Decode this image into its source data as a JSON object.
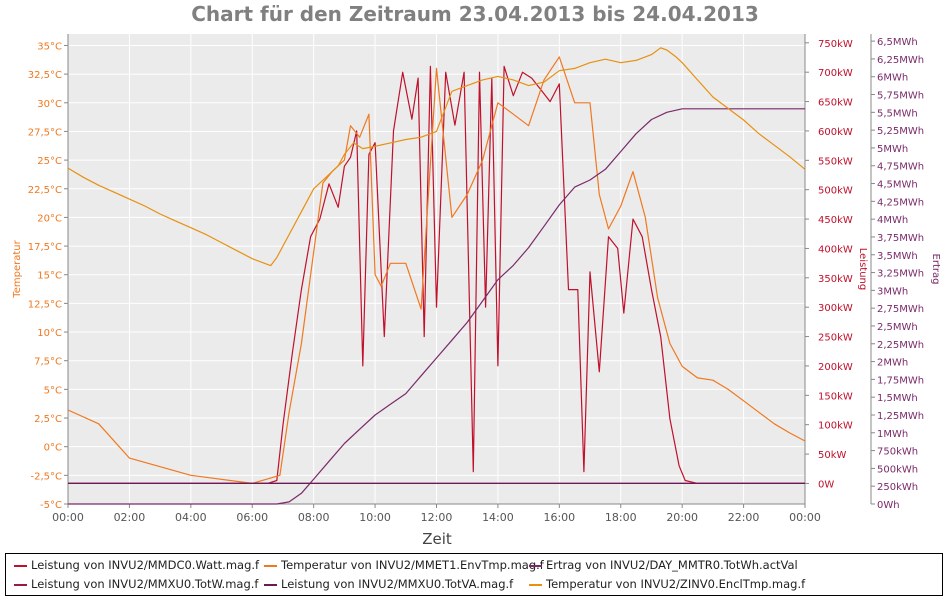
{
  "title": "Chart für den Zeitraum 23.04.2013 bis 24.04.2013",
  "colors": {
    "temp": "#f07820",
    "power": "#c0102c",
    "energy": "#7a2a6a",
    "plot_bg": "#ebebeb",
    "grid": "#ffffff"
  },
  "chart_data": {
    "type": "line",
    "title": "Chart für den Zeitraum 23.04.2013 bis 24.04.2013",
    "xlabel": "Zeit",
    "x_ticks": [
      "00:00",
      "02:00",
      "04:00",
      "06:00",
      "08:00",
      "10:00",
      "12:00",
      "14:00",
      "16:00",
      "18:00",
      "20:00",
      "22:00",
      "00:00"
    ],
    "xlim": [
      0,
      24
    ],
    "grid": true,
    "legend_position": "bottom",
    "axes": {
      "temperature": {
        "label": "Temperatur",
        "ylim": [
          -5,
          36
        ],
        "ticks": [
          "-5°C",
          "-2,5°C",
          "0°C",
          "2,5°C",
          "5°C",
          "7,5°C",
          "10°C",
          "12,5°C",
          "15°C",
          "17,5°C",
          "20°C",
          "22,5°C",
          "25°C",
          "27,5°C",
          "30°C",
          "32,5°C",
          "35°C"
        ]
      },
      "power": {
        "label": "Leistung",
        "ylim": [
          -35,
          765
        ],
        "ticks": [
          "0W",
          "50kW",
          "100kW",
          "150kW",
          "200kW",
          "250kW",
          "300kW",
          "350kW",
          "400kW",
          "450kW",
          "500kW",
          "550kW",
          "600kW",
          "650kW",
          "700kW",
          "750kW"
        ]
      },
      "energy": {
        "label": "Ertrag",
        "ylim": [
          0,
          6.6
        ],
        "ticks": [
          "0Wh",
          "250kWh",
          "500kWh",
          "750kWh",
          "1MWh",
          "1,25MWh",
          "1,5MWh",
          "1,75MWh",
          "2MWh",
          "2,25MWh",
          "2,5MWh",
          "2,75MWh",
          "3MWh",
          "3,25MWh",
          "3,5MWh",
          "3,75MWh",
          "4MWh",
          "4,25MWh",
          "4,5MWh",
          "4,75MWh",
          "5MWh",
          "5,25MWh",
          "5,5MWh",
          "5,75MWh",
          "6MWh",
          "6,25MWh",
          "6,5MWh"
        ]
      }
    },
    "series": [
      {
        "name": "Leistung von INVU2/MMDC0.Watt.mag.f",
        "axis": "power",
        "color": "#c0102c",
        "x": [
          0,
          6.5,
          6.8,
          7.0,
          7.3,
          7.6,
          7.9,
          8.2,
          8.5,
          8.8,
          9.0,
          9.2,
          9.4,
          9.6,
          9.8,
          10.0,
          10.3,
          10.6,
          10.9,
          11.2,
          11.4,
          11.6,
          11.8,
          12.0,
          12.3,
          12.6,
          12.9,
          13.2,
          13.4,
          13.6,
          13.8,
          14.0,
          14.2,
          14.5,
          14.8,
          15.1,
          15.4,
          15.7,
          16.0,
          16.3,
          16.6,
          16.8,
          17.0,
          17.3,
          17.6,
          17.9,
          18.1,
          18.4,
          18.7,
          19.0,
          19.3,
          19.6,
          19.9,
          20.1,
          20.5,
          24
        ],
        "y": [
          0,
          0,
          5,
          100,
          220,
          330,
          420,
          450,
          510,
          470,
          540,
          555,
          600,
          200,
          560,
          580,
          250,
          600,
          700,
          620,
          690,
          250,
          710,
          300,
          700,
          610,
          700,
          20,
          700,
          300,
          690,
          200,
          710,
          660,
          700,
          690,
          670,
          650,
          680,
          330,
          330,
          20,
          360,
          190,
          420,
          400,
          290,
          450,
          420,
          330,
          250,
          110,
          30,
          5,
          0,
          0
        ]
      },
      {
        "name": "Temperatur von INVU2/MMET1.EnvTmp.mag.f",
        "axis": "temperature",
        "color": "#f07820",
        "x": [
          0,
          1,
          2,
          4,
          6,
          6.9,
          7.2,
          7.6,
          8.0,
          8.3,
          8.6,
          9.0,
          9.2,
          9.5,
          9.8,
          10.0,
          10.2,
          10.5,
          11.0,
          11.5,
          12.0,
          12.5,
          13.0,
          13.5,
          14.0,
          14.5,
          15.0,
          15.5,
          16.0,
          16.5,
          17.0,
          17.3,
          17.6,
          18.0,
          18.4,
          18.8,
          19.2,
          19.6,
          20.0,
          20.5,
          21.0,
          21.5,
          22.0,
          22.5,
          23.0,
          23.5,
          24
        ],
        "y": [
          3.2,
          2,
          -1,
          -2.5,
          -3.2,
          -2.5,
          3,
          9,
          17,
          23,
          24,
          25,
          28,
          27,
          29,
          15,
          14,
          16,
          16,
          12,
          33,
          20,
          22,
          25,
          30,
          29,
          28,
          32,
          34,
          30,
          30,
          22,
          19,
          21,
          24,
          20,
          13,
          9,
          7,
          6,
          5.8,
          5,
          4,
          3,
          2,
          1.2,
          0.5
        ]
      },
      {
        "name": "Ertrag von INVU2/DAY_MMTR0.TotWh.actVal",
        "axis": "energy",
        "color": "#7a2a6a",
        "x": [
          0,
          6.8,
          7.2,
          7.6,
          8.0,
          8.5,
          9.0,
          9.5,
          10.0,
          10.5,
          11.0,
          11.5,
          12.0,
          12.5,
          13.0,
          13.5,
          14.0,
          14.5,
          15.0,
          15.5,
          16.0,
          16.5,
          17.0,
          17.5,
          18.0,
          18.5,
          19.0,
          19.5,
          20.0,
          21.0,
          22.0,
          23.0,
          24
        ],
        "y": [
          0,
          0,
          0.03,
          0.15,
          0.35,
          0.6,
          0.85,
          1.05,
          1.25,
          1.4,
          1.55,
          1.8,
          2.05,
          2.3,
          2.55,
          2.85,
          3.15,
          3.35,
          3.6,
          3.9,
          4.2,
          4.45,
          4.55,
          4.7,
          4.95,
          5.2,
          5.4,
          5.5,
          5.55,
          5.55,
          5.55,
          5.55,
          5.55
        ]
      },
      {
        "name": "Leistung von INVU2/MMXU0.TotW.mag.f",
        "axis": "power",
        "color": "#9a1a40",
        "x": [
          0,
          24
        ],
        "y": [
          0,
          0
        ]
      },
      {
        "name": "Leistung von INVU2/MMXU0.TotVA.mag.f",
        "axis": "power",
        "color": "#6a1a5a",
        "x": [
          0,
          24
        ],
        "y": [
          0,
          0
        ]
      },
      {
        "name": "Temperatur von INVU2/ZINV0.EnclTmp.mag.f",
        "axis": "temperature",
        "color": "#e89010",
        "x": [
          0,
          0.5,
          1.0,
          1.5,
          2.0,
          2.5,
          3.0,
          3.5,
          4.0,
          4.5,
          5.0,
          5.5,
          6.0,
          6.4,
          6.6,
          6.8,
          7.2,
          7.6,
          8.0,
          8.4,
          8.8,
          9.0,
          9.3,
          9.6,
          10.0,
          10.5,
          11.0,
          11.5,
          12.0,
          12.5,
          13.0,
          13.5,
          14.0,
          14.5,
          15.0,
          15.5,
          16.0,
          16.5,
          17.0,
          17.5,
          18.0,
          18.5,
          19.0,
          19.3,
          19.5,
          19.8,
          20.0,
          20.5,
          21.0,
          21.5,
          22.0,
          22.5,
          23.0,
          23.5,
          24
        ],
        "y": [
          24.3,
          23.5,
          22.8,
          22.2,
          21.6,
          21.0,
          20.3,
          19.7,
          19.1,
          18.5,
          17.8,
          17.1,
          16.4,
          16.0,
          15.8,
          16.5,
          18.5,
          20.5,
          22.5,
          23.5,
          24.5,
          25.5,
          26.5,
          26.0,
          26.2,
          26.5,
          26.8,
          27.0,
          27.5,
          31.0,
          31.5,
          32.0,
          32.3,
          32.0,
          31.5,
          31.8,
          32.8,
          33.0,
          33.5,
          33.8,
          33.5,
          33.7,
          34.2,
          34.8,
          34.6,
          34.0,
          33.5,
          32.0,
          30.5,
          29.5,
          28.5,
          27.3,
          26.3,
          25.3,
          24.2
        ]
      }
    ]
  }
}
